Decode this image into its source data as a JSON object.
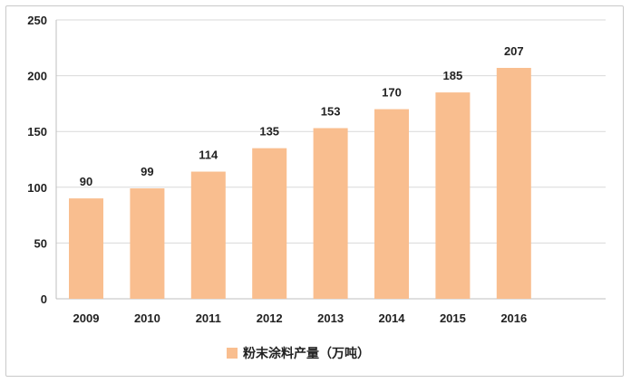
{
  "chart_data": {
    "type": "bar",
    "categories": [
      "2009",
      "2010",
      "2011",
      "2012",
      "2013",
      "2014",
      "2015",
      "2016"
    ],
    "series": [
      {
        "name": "粉末涂料产量（万吨）",
        "values": [
          90,
          99,
          114,
          135,
          153,
          170,
          185,
          207
        ]
      }
    ],
    "ylim": [
      0,
      250
    ],
    "yticks": [
      0,
      50,
      100,
      150,
      200,
      250
    ],
    "grid": true,
    "legend": "bottom",
    "data_labels": true,
    "colors": {
      "bar": "#F9BE8F",
      "grid": "#d9d9d9",
      "axis": "#bfbfbf"
    }
  }
}
